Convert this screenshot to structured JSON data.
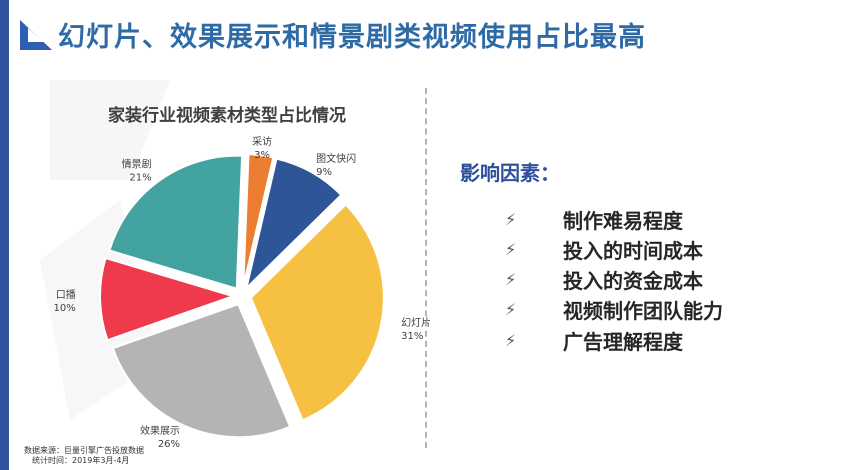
{
  "header": {
    "title": "幻灯片、效果展示和情景剧类视频使用占比最高",
    "accent_color": "#2f5fb0",
    "title_color": "#2e6aa6",
    "bar_color": "#2e52a0"
  },
  "chart_data": {
    "type": "pie",
    "title": "家装行业视频素材类型占比情况",
    "slices": [
      {
        "label": "采访",
        "pct_label": "3%",
        "value": 3,
        "color": "#ed7d31"
      },
      {
        "label": "图文快闪",
        "pct_label": "9%",
        "value": 9,
        "color": "#2e5597"
      },
      {
        "label": "幻灯片",
        "pct_label": "31%",
        "value": 31,
        "color": "#f6c143"
      },
      {
        "label": "效果展示",
        "pct_label": "26%",
        "value": 26,
        "color": "#b4b4b4"
      },
      {
        "label": "口播",
        "pct_label": "10%",
        "value": 10,
        "color": "#ee3a4a"
      },
      {
        "label": "情景剧",
        "pct_label": "21%",
        "value": 21,
        "color": "#43a3a0"
      }
    ]
  },
  "factors": {
    "heading": "影响因素：",
    "bullet_glyph": "⚡",
    "items": [
      "制作难易程度",
      "投入的时间成本",
      "投入的资金成本",
      "视频制作团队能力",
      "广告理解程度"
    ]
  },
  "footer": {
    "source_line": "数据来源：巨量引擎广告投放数据",
    "time_line": "统计时间：2019年3月-4月"
  }
}
